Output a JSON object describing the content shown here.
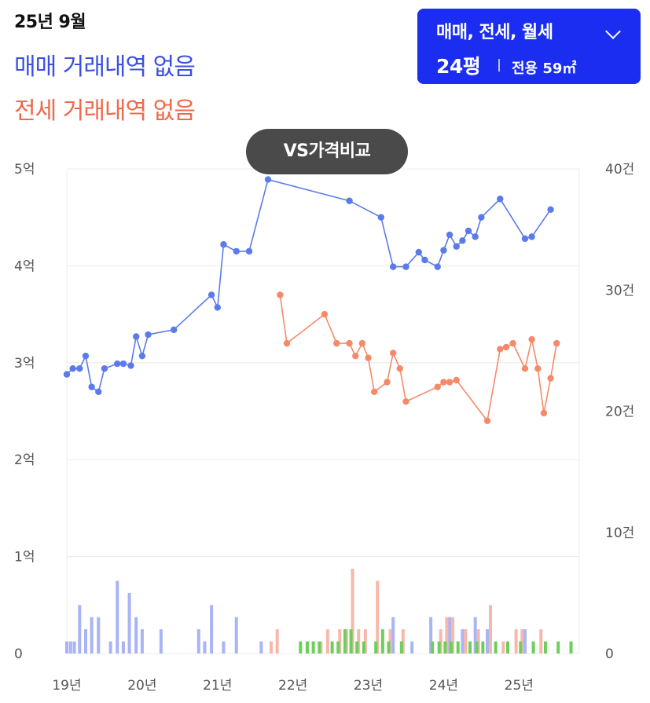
{
  "header": {
    "period": "25년 9월",
    "sale_status": "매매 거래내역 없음",
    "jeonse_status": "전세 거래내역 없음"
  },
  "filter": {
    "types": "매매, 전세, 월세",
    "size": "24평",
    "area": "전용 59㎡"
  },
  "vs_button": "VS가격비교",
  "colors": {
    "sale": "#5b7bea",
    "jeonse": "#f58a6a",
    "sale_bar": "#a8b4f5",
    "jeonse_bar": "#f7b8aa",
    "monthly_bar": "#6ccf5c",
    "accent": "#1a2df0"
  },
  "chart_data": {
    "type": "line",
    "y_left": {
      "ticks": [
        "0",
        "1억",
        "2억",
        "3억",
        "4억",
        "5억"
      ],
      "range": [
        0,
        5
      ]
    },
    "y_right": {
      "ticks": [
        "0",
        "10건",
        "20건",
        "30건",
        "40건"
      ],
      "range": [
        0,
        40
      ]
    },
    "x_axis": {
      "ticks": [
        "19년",
        "20년",
        "21년",
        "22년",
        "23년",
        "24년",
        "25년"
      ],
      "range": [
        2019.0,
        2025.8
      ]
    },
    "series": [
      {
        "key": "sale",
        "points": [
          [
            2019.0,
            2.88
          ],
          [
            2019.08,
            2.94
          ],
          [
            2019.17,
            2.94
          ],
          [
            2019.25,
            3.07
          ],
          [
            2019.33,
            2.75
          ],
          [
            2019.42,
            2.7
          ],
          [
            2019.5,
            2.94
          ],
          [
            2019.67,
            2.99
          ],
          [
            2019.75,
            2.99
          ],
          [
            2019.85,
            2.97
          ],
          [
            2019.92,
            3.27
          ],
          [
            2020.0,
            3.07
          ],
          [
            2020.08,
            3.29
          ],
          [
            2020.42,
            3.34
          ],
          [
            2020.92,
            3.7
          ],
          [
            2021.0,
            3.57
          ],
          [
            2021.08,
            4.22
          ],
          [
            2021.25,
            4.15
          ],
          [
            2021.42,
            4.15
          ],
          [
            2021.67,
            4.89
          ],
          [
            2022.75,
            4.67
          ],
          [
            2023.17,
            4.5
          ],
          [
            2023.33,
            3.99
          ],
          [
            2023.5,
            3.99
          ],
          [
            2023.67,
            4.14
          ],
          [
            2023.75,
            4.06
          ],
          [
            2023.92,
            3.99
          ],
          [
            2024.0,
            4.16
          ],
          [
            2024.08,
            4.32
          ],
          [
            2024.17,
            4.2
          ],
          [
            2024.25,
            4.26
          ],
          [
            2024.33,
            4.36
          ],
          [
            2024.42,
            4.3
          ],
          [
            2024.5,
            4.5
          ],
          [
            2024.75,
            4.69
          ],
          [
            2025.08,
            4.28
          ],
          [
            2025.17,
            4.3
          ],
          [
            2025.42,
            4.58
          ]
        ]
      },
      {
        "key": "jeonse",
        "points": [
          [
            2021.83,
            3.7
          ],
          [
            2021.92,
            3.2
          ],
          [
            2022.42,
            3.5
          ],
          [
            2022.58,
            3.2
          ],
          [
            2022.75,
            3.2
          ],
          [
            2022.83,
            3.07
          ],
          [
            2022.92,
            3.2
          ],
          [
            2023.0,
            3.05
          ],
          [
            2023.08,
            2.7
          ],
          [
            2023.25,
            2.8
          ],
          [
            2023.33,
            3.1
          ],
          [
            2023.42,
            2.94
          ],
          [
            2023.5,
            2.6
          ],
          [
            2023.92,
            2.75
          ],
          [
            2024.0,
            2.8
          ],
          [
            2024.08,
            2.8
          ],
          [
            2024.17,
            2.82
          ],
          [
            2024.58,
            2.4
          ],
          [
            2024.75,
            3.14
          ],
          [
            2024.83,
            3.16
          ],
          [
            2024.92,
            3.2
          ],
          [
            2025.08,
            2.94
          ],
          [
            2025.17,
            3.24
          ],
          [
            2025.25,
            2.94
          ],
          [
            2025.33,
            2.48
          ],
          [
            2025.42,
            2.84
          ],
          [
            2025.5,
            3.2
          ]
        ]
      }
    ],
    "volume_bars": {
      "sale": [
        [
          2019.0,
          1
        ],
        [
          2019.05,
          1
        ],
        [
          2019.1,
          1
        ],
        [
          2019.17,
          4
        ],
        [
          2019.25,
          2
        ],
        [
          2019.33,
          3
        ],
        [
          2019.42,
          3
        ],
        [
          2019.58,
          1
        ],
        [
          2019.67,
          6
        ],
        [
          2019.75,
          1
        ],
        [
          2019.83,
          5
        ],
        [
          2019.92,
          3
        ],
        [
          2020.0,
          2
        ],
        [
          2020.25,
          2
        ],
        [
          2020.75,
          2
        ],
        [
          2020.83,
          1
        ],
        [
          2020.92,
          4
        ],
        [
          2021.08,
          1
        ],
        [
          2021.25,
          3
        ],
        [
          2021.58,
          1
        ],
        [
          2023.33,
          3
        ],
        [
          2023.58,
          1
        ],
        [
          2023.83,
          3
        ],
        [
          2024.08,
          3
        ],
        [
          2024.25,
          2
        ],
        [
          2024.42,
          3
        ],
        [
          2024.58,
          2
        ],
        [
          2025.08,
          2
        ]
      ],
      "jeonse": [
        [
          2021.67,
          1
        ],
        [
          2021.75,
          2
        ],
        [
          2022.33,
          1
        ],
        [
          2022.42,
          2
        ],
        [
          2022.58,
          2
        ],
        [
          2022.67,
          2
        ],
        [
          2022.75,
          7
        ],
        [
          2022.83,
          2
        ],
        [
          2022.92,
          2
        ],
        [
          2023.08,
          6
        ],
        [
          2023.25,
          2
        ],
        [
          2023.42,
          2
        ],
        [
          2023.92,
          2
        ],
        [
          2024.0,
          3
        ],
        [
          2024.08,
          3
        ],
        [
          2024.25,
          2
        ],
        [
          2024.42,
          2
        ],
        [
          2024.58,
          4
        ],
        [
          2024.75,
          1
        ],
        [
          2024.92,
          2
        ],
        [
          2025.0,
          2
        ],
        [
          2025.25,
          2
        ]
      ],
      "monthly": [
        [
          2022.08,
          1
        ],
        [
          2022.17,
          1
        ],
        [
          2022.25,
          1
        ],
        [
          2022.33,
          1
        ],
        [
          2022.5,
          1
        ],
        [
          2022.58,
          1
        ],
        [
          2022.67,
          2
        ],
        [
          2022.75,
          2
        ],
        [
          2022.83,
          1
        ],
        [
          2022.92,
          1
        ],
        [
          2023.08,
          1
        ],
        [
          2023.17,
          2
        ],
        [
          2023.25,
          1
        ],
        [
          2023.42,
          1
        ],
        [
          2023.83,
          1
        ],
        [
          2023.92,
          1
        ],
        [
          2024.0,
          1
        ],
        [
          2024.08,
          1
        ],
        [
          2024.17,
          1
        ],
        [
          2024.33,
          1
        ],
        [
          2024.42,
          1
        ],
        [
          2024.5,
          1
        ],
        [
          2024.67,
          1
        ],
        [
          2024.83,
          1
        ],
        [
          2025.0,
          1
        ],
        [
          2025.17,
          1
        ],
        [
          2025.33,
          1
        ],
        [
          2025.5,
          1
        ],
        [
          2025.67,
          1
        ]
      ]
    },
    "grid": true
  }
}
